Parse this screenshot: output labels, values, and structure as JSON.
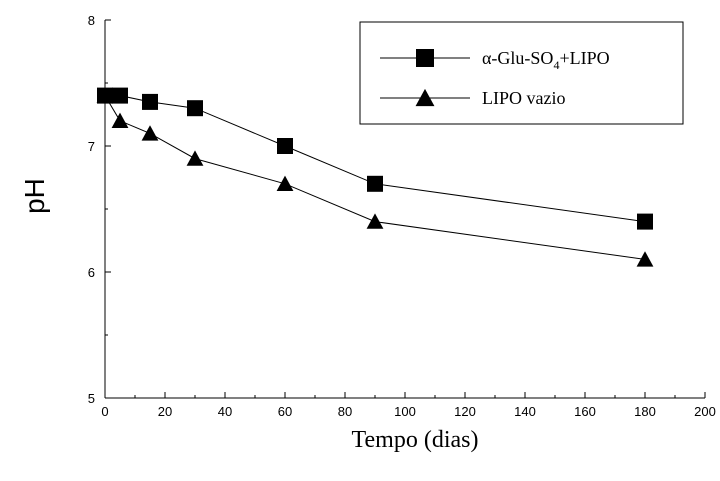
{
  "chart_data": {
    "type": "line",
    "title": "",
    "xlabel": "Tempo (dias)",
    "ylabel": "pH",
    "xlim": [
      0,
      200
    ],
    "ylim": [
      5,
      8
    ],
    "x_ticks": [
      "0",
      "20",
      "40",
      "60",
      "80",
      "100",
      "120",
      "140",
      "160",
      "180",
      "200"
    ],
    "y_ticks": [
      "5",
      "6",
      "7",
      "8"
    ],
    "grid": false,
    "legend_position": "top-right",
    "series": [
      {
        "name": "α-Glu-SO₄+LIPO",
        "legend_parts": {
          "prefix": "α-Glu-SO",
          "sub": "4",
          "suffix": "+LIPO"
        },
        "marker": "square",
        "color": "#000000",
        "x": [
          0,
          5,
          15,
          30,
          60,
          90,
          180
        ],
        "y": [
          7.4,
          7.4,
          7.35,
          7.3,
          7.0,
          6.7,
          6.4
        ]
      },
      {
        "name": "LIPO vazio",
        "marker": "triangle",
        "color": "#000000",
        "x": [
          0,
          5,
          15,
          30,
          60,
          90,
          180
        ],
        "y": [
          7.4,
          7.2,
          7.1,
          6.9,
          6.7,
          6.4,
          6.1
        ]
      }
    ]
  }
}
